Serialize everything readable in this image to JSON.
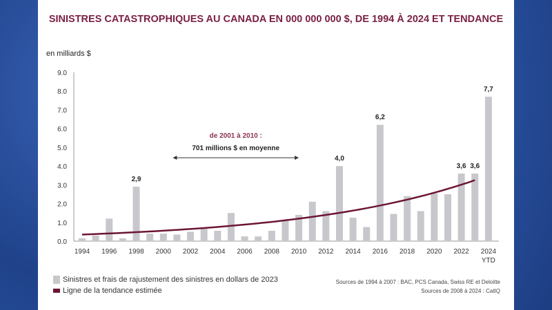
{
  "chart_data": {
    "type": "bar",
    "title": "SINISTRES CATASTROPHIQUES AU CANADA EN 000 000 000 $, DE 1994 À 2024 ET TENDANCE",
    "ylabel": "en milliards $",
    "ylim": [
      0,
      9
    ],
    "yticks": [
      "0.0",
      "1.0",
      "2.0",
      "3.0",
      "4.0",
      "5.0",
      "6.0",
      "7.0",
      "8.0",
      "9.0"
    ],
    "categories": [
      1994,
      1995,
      1996,
      1997,
      1998,
      1999,
      2000,
      2001,
      2002,
      2003,
      2004,
      2005,
      2006,
      2007,
      2008,
      2009,
      2010,
      2011,
      2012,
      2013,
      2014,
      2015,
      2016,
      2017,
      2018,
      2019,
      2020,
      2021,
      2022,
      2023,
      2024
    ],
    "xticks": [
      "1994",
      "1996",
      "1998",
      "2000",
      "2002",
      "2004",
      "2006",
      "2008",
      "2010",
      "2012",
      "2014",
      "2016",
      "2018",
      "2020",
      "2022",
      "2024"
    ],
    "xtick_sub": "YTD",
    "series": [
      {
        "name": "Sinistres et frais de rajustement des sinistres en dollars de 2023",
        "type": "bar",
        "color": "#c8c8cc",
        "values": [
          0.15,
          0.3,
          1.2,
          0.15,
          2.9,
          0.4,
          0.4,
          0.35,
          0.5,
          0.7,
          0.55,
          1.5,
          0.25,
          0.25,
          0.55,
          1.1,
          1.4,
          2.1,
          1.6,
          4.0,
          1.25,
          0.75,
          6.2,
          1.45,
          2.4,
          1.6,
          2.55,
          2.5,
          3.6,
          3.6,
          7.7
        ]
      },
      {
        "name": "Ligne de la tendance estimée",
        "type": "line",
        "color": "#6b1535",
        "x_range": [
          1994,
          2023
        ],
        "start": 0.35,
        "end": 3.25
      }
    ],
    "data_labels": [
      {
        "year": 1998,
        "text": "2,9"
      },
      {
        "year": 2013,
        "text": "4,0"
      },
      {
        "year": 2016,
        "text": "6,2"
      },
      {
        "year": 2022,
        "text": "3,6"
      },
      {
        "year": 2023,
        "text": "3,6"
      },
      {
        "year": 2024,
        "text": "7,7"
      }
    ],
    "annotation": {
      "line1": "de 2001 à 2010 :",
      "line2": "701 millions $ en moyenne",
      "from": 2001,
      "to": 2010
    },
    "sources": [
      "Sources de 1994 à 2007 : BAC, PCS Canada, Swiss RE et Deloitte",
      "Sources de 2008 à 2024 : CatIQ"
    ]
  }
}
